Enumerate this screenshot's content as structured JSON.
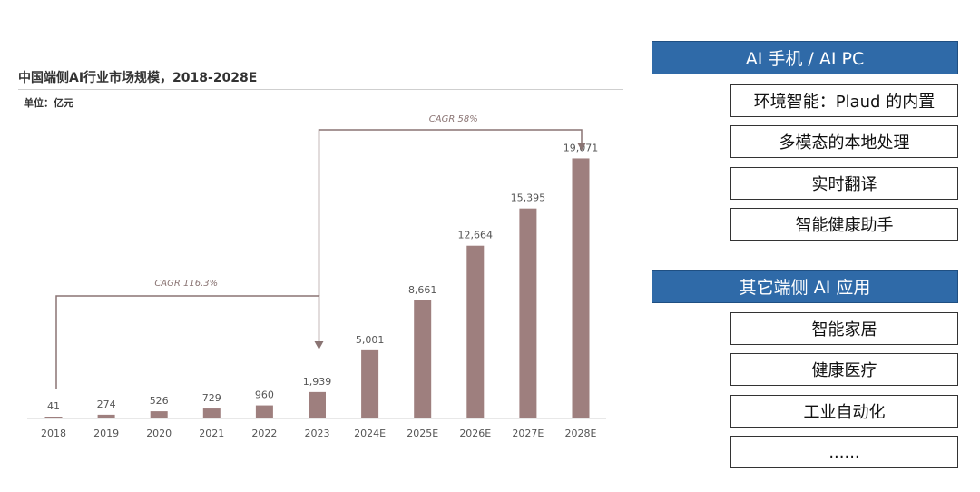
{
  "chart_data": {
    "type": "bar",
    "title": "中国端侧AI行业市场规模，2018-2028E",
    "unit_label": "单位：亿元",
    "categories": [
      "2018",
      "2019",
      "2020",
      "2021",
      "2022",
      "2023",
      "2024E",
      "2025E",
      "2026E",
      "2027E",
      "2028E"
    ],
    "values": [
      41,
      274,
      526,
      729,
      960,
      1939,
      5001,
      8661,
      12664,
      15395,
      19071
    ],
    "value_labels": [
      "41",
      "274",
      "526",
      "729",
      "960",
      "1,939",
      "5,001",
      "8,661",
      "12,664",
      "15,395",
      "19,071"
    ],
    "ylim": [
      0,
      20000
    ],
    "grid": false,
    "bar_color": "#9e7f7e",
    "annotations": [
      {
        "label": "CAGR 116.3%",
        "from": "2018",
        "to": "2023"
      },
      {
        "label": "CAGR 58%",
        "from": "2023",
        "to": "2028E"
      }
    ]
  },
  "panel": {
    "sections": [
      {
        "header": "AI 手机 / AI PC",
        "items": [
          "环境智能：Plaud 的内置",
          "多模态的本地处理",
          "实时翻译",
          "智能健康助手"
        ]
      },
      {
        "header": "其它端侧 AI 应用",
        "items": [
          "智能家居",
          "健康医疗",
          "工业自动化",
          "......"
        ]
      }
    ]
  }
}
